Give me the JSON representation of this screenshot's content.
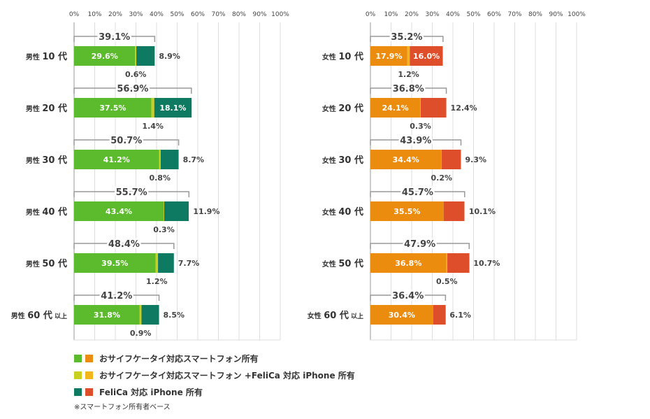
{
  "chart_data": [
    {
      "type": "bar",
      "stacked": true,
      "orientation": "horizontal",
      "x_ticks": [
        "0%",
        "10%",
        "20%",
        "30%",
        "40%",
        "50%",
        "60%",
        "70%",
        "80%",
        "90%",
        "100%"
      ],
      "xlim": [
        0,
        100
      ],
      "grid": true,
      "categories": [
        {
          "gender": "男性",
          "age": "10 代",
          "suffix": ""
        },
        {
          "gender": "男性",
          "age": "20 代",
          "suffix": ""
        },
        {
          "gender": "男性",
          "age": "30 代",
          "suffix": ""
        },
        {
          "gender": "男性",
          "age": "40 代",
          "suffix": ""
        },
        {
          "gender": "男性",
          "age": "50 代",
          "suffix": ""
        },
        {
          "gender": "男性",
          "age": "60 代",
          "suffix": "以上"
        }
      ],
      "series": [
        {
          "values": [
            29.6,
            37.5,
            41.2,
            43.4,
            39.5,
            31.8
          ],
          "color": "#5cbb2c"
        },
        {
          "values": [
            0.6,
            1.4,
            0.8,
            0.3,
            1.2,
            0.9
          ],
          "color": "#c8cf1e"
        },
        {
          "values": [
            8.9,
            18.1,
            8.7,
            11.9,
            7.7,
            8.5
          ],
          "color": "#0f7a62"
        }
      ],
      "totals": [
        39.1,
        56.9,
        50.7,
        55.7,
        48.4,
        41.2
      ],
      "labels": {
        "first": [
          "29.6%",
          "37.5%",
          "41.2%",
          "43.4%",
          "39.5%",
          "31.8%"
        ],
        "middle": [
          "0.6%",
          "1.4%",
          "0.8%",
          "0.3%",
          "1.2%",
          "0.9%"
        ],
        "last": [
          "8.9%",
          "18.1%",
          "8.7%",
          "11.9%",
          "7.7%",
          "8.5%"
        ],
        "total": [
          "39.1%",
          "56.9%",
          "50.7%",
          "55.7%",
          "48.4%",
          "41.2%"
        ]
      },
      "last_inside": [
        false,
        true,
        false,
        false,
        false,
        false
      ]
    },
    {
      "type": "bar",
      "stacked": true,
      "orientation": "horizontal",
      "x_ticks": [
        "0%",
        "10%",
        "20%",
        "30%",
        "40%",
        "50%",
        "60%",
        "70%",
        "80%",
        "90%",
        "100%"
      ],
      "xlim": [
        0,
        100
      ],
      "grid": true,
      "categories": [
        {
          "gender": "女性",
          "age": "10 代",
          "suffix": ""
        },
        {
          "gender": "女性",
          "age": "20 代",
          "suffix": ""
        },
        {
          "gender": "女性",
          "age": "30 代",
          "suffix": ""
        },
        {
          "gender": "女性",
          "age": "40 代",
          "suffix": ""
        },
        {
          "gender": "女性",
          "age": "50 代",
          "suffix": ""
        },
        {
          "gender": "女性",
          "age": "60 代",
          "suffix": "以上"
        }
      ],
      "series": [
        {
          "values": [
            17.9,
            24.1,
            34.4,
            35.5,
            36.8,
            30.4
          ],
          "color": "#ec8c0e"
        },
        {
          "values": [
            1.2,
            0.3,
            0.2,
            0.0,
            0.5,
            0.0
          ],
          "color": "#f2b51c"
        },
        {
          "values": [
            16.0,
            12.4,
            9.3,
            10.1,
            10.7,
            6.1
          ],
          "color": "#df4e2a"
        }
      ],
      "totals": [
        35.2,
        36.8,
        43.9,
        45.7,
        47.9,
        36.4
      ],
      "labels": {
        "first": [
          "17.9%",
          "24.1%",
          "34.4%",
          "35.5%",
          "36.8%",
          "30.4%"
        ],
        "middle": [
          "1.2%",
          "0.3%",
          "0.2%",
          "",
          "0.5%",
          ""
        ],
        "last": [
          "16.0%",
          "12.4%",
          "9.3%",
          "10.1%",
          "10.7%",
          "6.1%"
        ],
        "total": [
          "35.2%",
          "36.8%",
          "43.9%",
          "45.7%",
          "47.9%",
          "36.4%"
        ]
      },
      "last_inside": [
        true,
        false,
        false,
        false,
        false,
        false
      ]
    }
  ],
  "legend": {
    "items": [
      {
        "label": "おサイフケータイ対応スマートフォン所有",
        "colors": [
          "#5cbb2c",
          "#ec8c0e"
        ]
      },
      {
        "label": "おサイフケータイ対応スマートフォン +FeliCa 対応 iPhone 所有",
        "colors": [
          "#c8cf1e",
          "#f2b51c"
        ]
      },
      {
        "label": "FeliCa 対応 iPhone 所有",
        "colors": [
          "#0f7a62",
          "#df4e2a"
        ]
      }
    ]
  },
  "footnote": "※スマートフォン所有者ベース"
}
